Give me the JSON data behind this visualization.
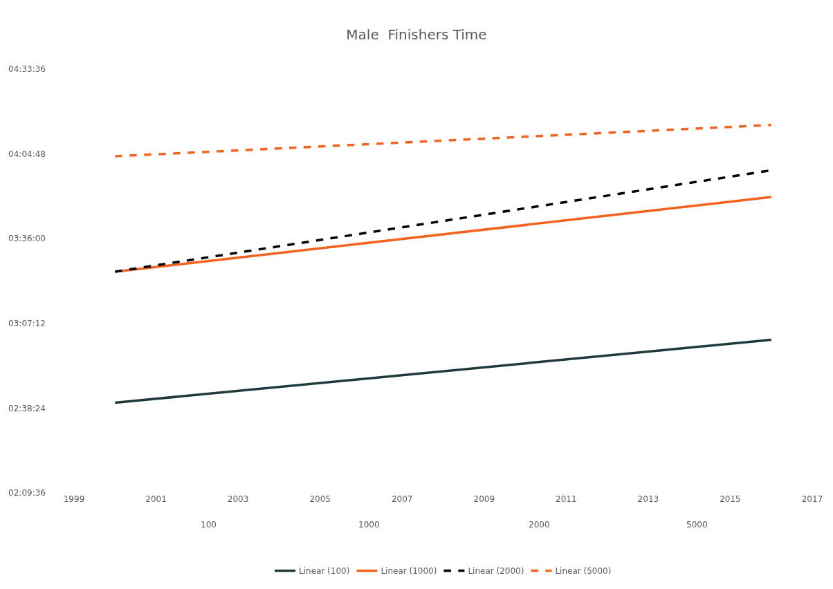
{
  "chart_data": {
    "type": "line",
    "title": "Male  Finishers Time",
    "x": [
      2000,
      2016
    ],
    "series": [
      {
        "name": "Linear (100)",
        "color": "#1f3a3d",
        "line_style": "solid",
        "values": [
          2.671,
          3.027
        ]
      },
      {
        "name": "Linear (1000)",
        "color": "#f4621f",
        "line_style": "solid",
        "values": [
          3.413,
          3.836
        ]
      },
      {
        "name": "Linear (2000)",
        "color": "#000000",
        "line_style": "dashed",
        "values": [
          3.413,
          3.987
        ]
      },
      {
        "name": "Linear (5000)",
        "color": "#f4621f",
        "line_style": "dashed",
        "values": [
          4.067,
          4.244
        ]
      }
    ],
    "xlim": [
      1999,
      2017
    ],
    "xticks": [
      1999,
      2001,
      2003,
      2005,
      2007,
      2009,
      2011,
      2013,
      2015,
      2017
    ],
    "ylim": [
      2.16,
      4.56
    ],
    "yticks": [
      {
        "value": 2.16,
        "label": "02:09:36"
      },
      {
        "value": 2.64,
        "label": "02:38:24"
      },
      {
        "value": 3.12,
        "label": "03:07:12"
      },
      {
        "value": 3.6,
        "label": "03:36:00"
      },
      {
        "value": 4.08,
        "label": "04:04:48"
      },
      {
        "value": 4.56,
        "label": "04:33:36"
      }
    ],
    "annotations": [
      "100",
      "1000",
      "2000",
      "5000"
    ],
    "grid": false,
    "legend": "bottom",
    "marker": "none"
  }
}
